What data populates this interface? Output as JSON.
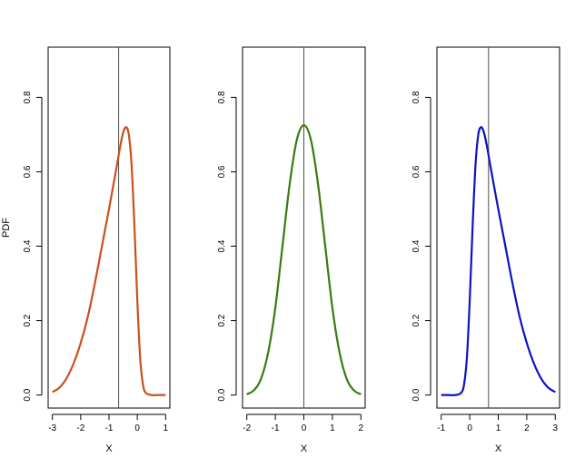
{
  "chart_data": [
    {
      "type": "line",
      "title": "",
      "xlabel": "X",
      "ylabel": "PDF",
      "xlim": [
        -3.15,
        1.15
      ],
      "ylim": [
        -0.035,
        0.935
      ],
      "x_ticks": [
        -3,
        -2,
        -1,
        0,
        1
      ],
      "y_ticks": [
        0.0,
        0.2,
        0.4,
        0.6,
        0.8
      ],
      "y_tick_labels": [
        "0.0",
        "0.2",
        "0.4",
        "0.6",
        "0.8"
      ],
      "vline_x": -0.66,
      "color": "#c9501c",
      "series": [
        {
          "x": [
            -3.0,
            -2.75,
            -2.5,
            -2.25,
            -2.0,
            -1.75,
            -1.5,
            -1.25,
            -1.0,
            -0.75,
            -0.6,
            -0.5,
            -0.4,
            -0.3,
            -0.2,
            -0.1,
            0.0,
            0.1,
            0.2,
            0.3,
            0.5,
            0.75,
            1.0
          ],
          "values": [
            0.008,
            0.02,
            0.045,
            0.085,
            0.14,
            0.21,
            0.3,
            0.4,
            0.5,
            0.605,
            0.67,
            0.705,
            0.72,
            0.7,
            0.615,
            0.45,
            0.255,
            0.1,
            0.028,
            0.006,
            0.0,
            0.0,
            0.0
          ]
        }
      ]
    },
    {
      "type": "line",
      "title": "",
      "xlabel": "X",
      "ylabel": "",
      "xlim": [
        -2.15,
        2.15
      ],
      "ylim": [
        -0.035,
        0.935
      ],
      "x_ticks": [
        -2,
        -1,
        0,
        1,
        2
      ],
      "y_ticks": [
        0.0,
        0.2,
        0.4,
        0.6,
        0.8
      ],
      "y_tick_labels": [
        "0.0",
        "0.2",
        "0.4",
        "0.6",
        "0.8"
      ],
      "vline_x": 0.0,
      "color": "#3a7a0f",
      "series": [
        {
          "x": [
            -2.0,
            -1.75,
            -1.5,
            -1.25,
            -1.0,
            -0.75,
            -0.5,
            -0.25,
            0.0,
            0.25,
            0.5,
            0.75,
            1.0,
            1.25,
            1.5,
            1.75,
            2.0
          ],
          "values": [
            0.002,
            0.013,
            0.044,
            0.115,
            0.235,
            0.4,
            0.565,
            0.685,
            0.725,
            0.685,
            0.565,
            0.4,
            0.235,
            0.115,
            0.044,
            0.013,
            0.002
          ]
        }
      ]
    },
    {
      "type": "line",
      "title": "",
      "xlabel": "X",
      "ylabel": "",
      "xlim": [
        -1.15,
        3.15
      ],
      "ylim": [
        -0.035,
        0.935
      ],
      "x_ticks": [
        -1,
        0,
        1,
        2,
        3
      ],
      "y_ticks": [
        0.0,
        0.2,
        0.4,
        0.6,
        0.8
      ],
      "y_tick_labels": [
        "0.0",
        "0.2",
        "0.4",
        "0.6",
        "0.8"
      ],
      "vline_x": 0.66,
      "color": "#0a14c4",
      "series": [
        {
          "x": [
            -1.0,
            -0.75,
            -0.5,
            -0.3,
            -0.2,
            -0.1,
            0.0,
            0.1,
            0.2,
            0.3,
            0.4,
            0.5,
            0.6,
            0.75,
            1.0,
            1.25,
            1.5,
            1.75,
            2.0,
            2.25,
            2.5,
            2.75,
            3.0
          ],
          "values": [
            0.0,
            0.0,
            0.0,
            0.006,
            0.028,
            0.1,
            0.255,
            0.45,
            0.615,
            0.7,
            0.72,
            0.705,
            0.67,
            0.605,
            0.5,
            0.4,
            0.3,
            0.21,
            0.14,
            0.085,
            0.045,
            0.02,
            0.008
          ]
        }
      ]
    }
  ]
}
